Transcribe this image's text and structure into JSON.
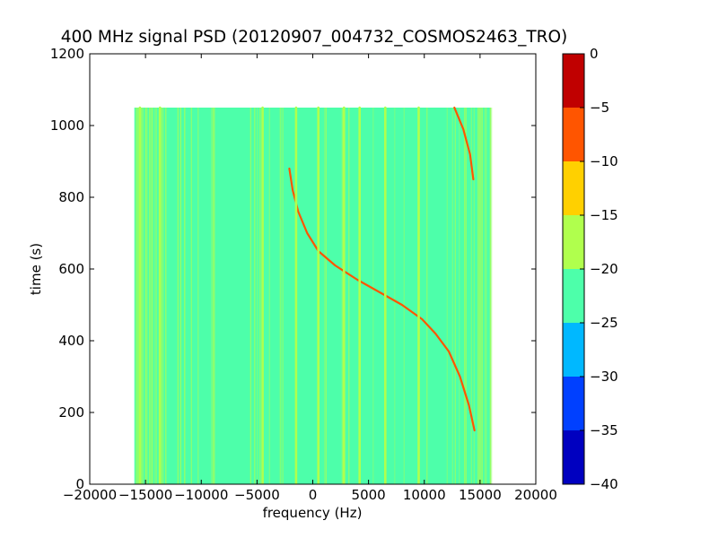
{
  "chart_data": {
    "type": "heatmap",
    "title": "400 MHz signal PSD (20120907_004732_COSMOS2463_TRO)",
    "xlabel": "frequency (Hz)",
    "ylabel": "time (s)",
    "xlim": [
      -20000,
      20000
    ],
    "ylim": [
      0,
      1200
    ],
    "xticks": [
      -20000,
      -15000,
      -10000,
      -5000,
      0,
      5000,
      10000,
      15000,
      20000
    ],
    "yticks": [
      0,
      200,
      400,
      600,
      800,
      1000,
      1200
    ],
    "grid": false,
    "colormap": "jet",
    "data_extent": {
      "x": [
        -16000,
        16000
      ],
      "y": [
        0,
        1050
      ]
    },
    "colorbar": {
      "levels": [
        -40,
        -35,
        -30,
        -25,
        -20,
        -15,
        -10,
        -5,
        0
      ],
      "ticks": [
        0,
        -5,
        -10,
        -15,
        -20,
        -25,
        -30,
        -35,
        -40
      ],
      "colors": [
        "#0000c0",
        "#0040ff",
        "#00b8ff",
        "#4dffaa",
        "#b0ff4d",
        "#ffd000",
        "#ff5500",
        "#c00000"
      ]
    },
    "background_level": -21,
    "features": [
      {
        "name": "doppler-trace",
        "level": -5,
        "points": [
          [
            -2100,
            880
          ],
          [
            -1800,
            820
          ],
          [
            -1300,
            760
          ],
          [
            -500,
            700
          ],
          [
            500,
            650
          ],
          [
            2000,
            610
          ],
          [
            4000,
            570
          ],
          [
            6000,
            535
          ],
          [
            8000,
            500
          ],
          [
            9800,
            460
          ],
          [
            11000,
            420
          ],
          [
            12200,
            370
          ],
          [
            13200,
            300
          ],
          [
            14000,
            220
          ],
          [
            14500,
            150
          ]
        ]
      },
      {
        "name": "doppler-trace-wrap",
        "level": -5,
        "points": [
          [
            12700,
            1050
          ],
          [
            13500,
            990
          ],
          [
            14100,
            920
          ],
          [
            14400,
            850
          ]
        ]
      },
      {
        "name": "stripe",
        "level": -17,
        "points": [
          [
            -15500,
            0
          ],
          [
            -15500,
            1050
          ]
        ]
      },
      {
        "name": "stripe",
        "level": -17,
        "points": [
          [
            -13700,
            0
          ],
          [
            -13700,
            1050
          ]
        ]
      },
      {
        "name": "stripe",
        "level": -17,
        "points": [
          [
            -4500,
            0
          ],
          [
            -4500,
            1050
          ]
        ]
      },
      {
        "name": "stripe",
        "level": -17,
        "points": [
          [
            -1500,
            0
          ],
          [
            -1500,
            1050
          ]
        ]
      },
      {
        "name": "stripe",
        "level": -17,
        "points": [
          [
            500,
            0
          ],
          [
            500,
            1050
          ]
        ]
      },
      {
        "name": "stripe",
        "level": -17,
        "points": [
          [
            2800,
            0
          ],
          [
            2800,
            1050
          ]
        ]
      },
      {
        "name": "stripe",
        "level": -17,
        "points": [
          [
            4200,
            0
          ],
          [
            4200,
            1050
          ]
        ]
      },
      {
        "name": "stripe",
        "level": -17,
        "points": [
          [
            6500,
            0
          ],
          [
            6500,
            1050
          ]
        ]
      },
      {
        "name": "stripe",
        "level": -17,
        "points": [
          [
            9500,
            0
          ],
          [
            9500,
            1050
          ]
        ]
      }
    ]
  }
}
